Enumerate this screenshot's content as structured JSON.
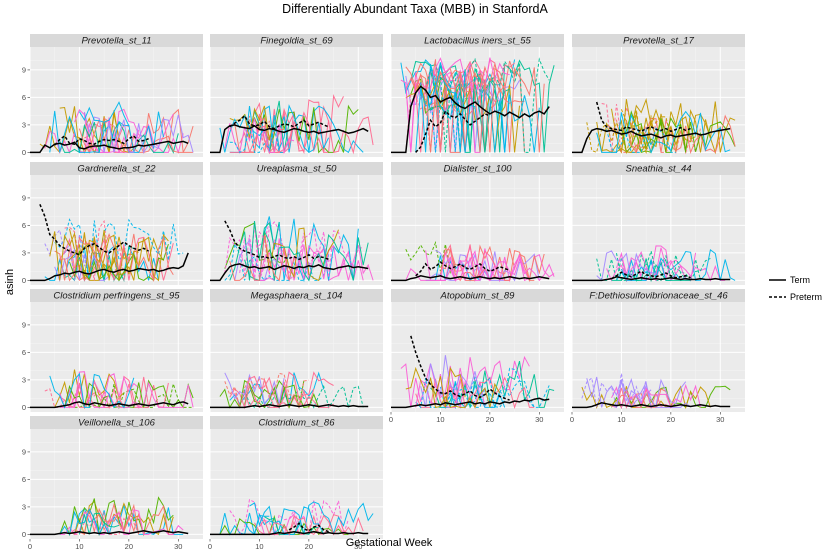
{
  "chart_data": {
    "type": "line",
    "title": "Differentially Abundant Taxa (MBB) in StanfordA",
    "xlabel": "Gestational Week",
    "ylabel": "asinh",
    "xlim": [
      0,
      35
    ],
    "ylim": [
      -0.5,
      11.5
    ],
    "x_ticks": [
      0,
      10,
      20,
      30
    ],
    "y_ticks": [
      0,
      3,
      6,
      9
    ],
    "legend": {
      "position": "right",
      "entries": [
        {
          "label": "Term",
          "linetype": "solid"
        },
        {
          "label": "Preterm",
          "linetype": "dashed"
        }
      ]
    },
    "subject_colors": [
      "#F8766D",
      "#C49A00",
      "#53B400",
      "#00C094",
      "#00B6EB",
      "#A58AFF",
      "#FB61D7",
      "#FF6C91"
    ],
    "panels": [
      {
        "title": "Prevotella_st_11",
        "level": 2.0,
        "spread": 5.0,
        "term_mean": [
          0,
          0,
          0,
          0.8,
          0.5,
          0.9,
          1.0,
          0.8,
          0.9,
          1.1,
          0.5,
          0.4,
          0.6,
          0.7,
          0.7,
          0.8,
          0.6,
          0.5,
          0.4,
          0.5,
          0.5,
          0.6,
          0.8,
          0.7,
          0.8,
          0.9,
          1.0,
          1.1,
          1.2,
          1.0,
          1.1,
          1.2,
          1.0
        ],
        "preterm_mean": [
          null,
          null,
          null,
          null,
          null,
          0.8,
          1.4,
          1.8,
          1.0,
          0.9,
          1.5,
          1.3,
          1.0,
          0.9,
          1.2,
          1.4,
          1.3,
          1.4,
          1.2,
          1.0,
          1.5,
          1.8,
          1.2,
          1.3,
          1.5,
          null,
          null,
          null,
          null,
          null,
          null,
          null,
          null
        ]
      },
      {
        "title": "Finegoldia_st_69",
        "level": 2.5,
        "spread": 5.5,
        "term_mean": [
          0,
          0,
          0,
          2.5,
          2.9,
          3.0,
          2.8,
          2.7,
          2.6,
          2.9,
          2.5,
          2.4,
          2.6,
          2.5,
          2.3,
          2.2,
          2.4,
          2.6,
          2.5,
          2.3,
          2.2,
          2.3,
          2.1,
          2.2,
          2.3,
          2.4,
          2.5,
          2.3,
          2.1,
          2.2,
          2.4,
          2.6,
          2.3
        ],
        "preterm_mean": [
          null,
          null,
          null,
          null,
          2.8,
          3.2,
          3.5,
          4.0,
          3.1,
          2.9,
          3.0,
          3.4,
          2.8,
          2.6,
          2.9,
          3.1,
          3.0,
          2.8,
          3.2,
          3.5,
          2.9,
          3.1,
          3.3,
          3.0,
          2.8,
          null,
          null,
          null,
          null,
          null,
          null,
          null,
          null
        ]
      },
      {
        "title": "Lactobacillus iners_st_55",
        "level": 7.0,
        "spread": 4.0,
        "term_mean": [
          0,
          0,
          0,
          0,
          5.0,
          6.5,
          7.2,
          6.8,
          6.0,
          6.2,
          5.5,
          5.8,
          6.0,
          5.4,
          5.0,
          4.8,
          5.2,
          5.5,
          5.0,
          4.6,
          4.2,
          4.5,
          4.3,
          4.0,
          4.4,
          4.1,
          3.8,
          4.2,
          3.9,
          4.3,
          4.5,
          4.2,
          5.0
        ],
        "preterm_mean": [
          null,
          null,
          null,
          null,
          null,
          0,
          0.6,
          2.0,
          3.5,
          2.8,
          3.2,
          4.5,
          4.0,
          3.8,
          4.2,
          3.6,
          3.0,
          3.4,
          3.8,
          4.2,
          4.0,
          null,
          null,
          null,
          null,
          null,
          null,
          null,
          null,
          null,
          null,
          null,
          null
        ]
      },
      {
        "title": "Prevotella_st_17",
        "level": 2.5,
        "spread": 5.0,
        "term_mean": [
          0,
          0,
          0,
          1.5,
          2.4,
          2.6,
          2.5,
          2.3,
          2.4,
          2.2,
          2.0,
          2.1,
          2.3,
          2.0,
          1.8,
          1.9,
          2.0,
          1.8,
          1.6,
          1.8,
          1.9,
          1.7,
          1.8,
          1.9,
          2.0,
          2.1,
          1.9,
          2.0,
          2.2,
          2.3,
          2.4,
          2.5,
          2.6
        ],
        "preterm_mean": [
          null,
          null,
          null,
          null,
          null,
          5.5,
          3.5,
          2.8,
          2.6,
          2.5,
          2.4,
          2.8,
          2.6,
          2.5,
          2.3,
          2.6,
          2.8,
          2.5,
          2.4,
          2.6,
          2.3,
          2.5,
          2.7,
          2.4,
          2.6,
          null,
          null,
          null,
          null,
          null,
          null,
          null,
          null
        ]
      },
      {
        "title": "Gardnerella_st_22",
        "level": 3.0,
        "spread": 5.0,
        "term_mean": [
          0,
          0,
          0,
          0,
          0.2,
          0.5,
          0.6,
          0.8,
          0.7,
          0.9,
          1.0,
          0.8,
          0.7,
          0.9,
          1.1,
          1.2,
          1.0,
          0.9,
          1.1,
          1.2,
          1.0,
          1.1,
          1.3,
          1.2,
          1.1,
          1.2,
          1.0,
          1.1,
          1.3,
          1.4,
          1.3,
          1.6,
          3.0
        ],
        "preterm_mean": [
          null,
          null,
          8.3,
          7.0,
          5.0,
          4.5,
          3.8,
          3.5,
          3.2,
          3.0,
          2.8,
          3.5,
          3.8,
          4.0,
          3.6,
          3.2,
          3.0,
          3.4,
          3.8,
          4.2,
          3.8,
          3.5,
          3.3,
          3.5,
          3.2,
          null,
          null,
          null,
          null,
          null,
          null,
          null,
          null
        ]
      },
      {
        "title": "Ureaplasma_st_50",
        "level": 2.5,
        "spread": 6.0,
        "term_mean": [
          0,
          0,
          0,
          0.8,
          1.5,
          1.7,
          1.8,
          1.6,
          1.4,
          1.5,
          1.3,
          1.4,
          1.5,
          1.2,
          1.4,
          1.6,
          1.5,
          1.3,
          1.5,
          1.4,
          1.6,
          1.5,
          1.7,
          1.4,
          1.3,
          1.2,
          1.4,
          1.5,
          1.6,
          1.4,
          1.5,
          1.4,
          1.3
        ],
        "preterm_mean": [
          null,
          null,
          null,
          6.5,
          5.5,
          4.2,
          3.5,
          3.2,
          3.0,
          2.8,
          2.5,
          2.6,
          2.4,
          2.6,
          2.8,
          2.5,
          2.4,
          2.6,
          2.3,
          2.5,
          2.8,
          2.4,
          2.6,
          2.5,
          2.3,
          null,
          null,
          null,
          null,
          null,
          null,
          null,
          null
        ]
      },
      {
        "title": "Dialister_st_100",
        "level": 1.0,
        "spread": 4.5,
        "term_mean": [
          0,
          0,
          0,
          0,
          0.2,
          0.3,
          0.5,
          0.4,
          0.3,
          0.4,
          0.5,
          0.3,
          0.2,
          0.3,
          0.4,
          0.3,
          0.2,
          0.3,
          0.4,
          0.3,
          0.2,
          0.3,
          0.2,
          0.3,
          0.4,
          0.3,
          0.2,
          0.3,
          0.2,
          0.3,
          0.4,
          0.3,
          0.2
        ],
        "preterm_mean": [
          null,
          null,
          null,
          null,
          null,
          0.5,
          1.0,
          1.8,
          1.2,
          1.5,
          2.0,
          1.6,
          1.3,
          1.5,
          1.8,
          1.4,
          1.2,
          1.5,
          1.8,
          1.3,
          1.0,
          1.2,
          1.5,
          1.3,
          1.1,
          null,
          null,
          null,
          null,
          null,
          null,
          null,
          null
        ]
      },
      {
        "title": "Sneathia_st_44",
        "level": 0.5,
        "spread": 4.0,
        "term_mean": [
          0,
          0,
          0,
          0,
          0,
          0,
          0,
          0.1,
          0.2,
          0.4,
          0.3,
          0.2,
          0.1,
          0.2,
          0.3,
          0.2,
          0.1,
          0.2,
          0.1,
          0.2,
          0.3,
          0.2,
          0.1,
          0.2,
          0.1,
          0.1,
          0.2,
          0.1,
          0.1,
          0.2,
          0.1,
          0.1,
          0.1
        ],
        "preterm_mean": [
          null,
          null,
          null,
          null,
          null,
          null,
          null,
          null,
          0.2,
          0.5,
          0.9,
          0.6,
          0.4,
          0.7,
          1.0,
          0.6,
          0.5,
          0.4,
          0.6,
          0.8,
          0.5,
          0.3,
          0.4,
          0.5,
          0.3,
          null,
          null,
          null,
          null,
          null,
          null,
          null,
          null
        ]
      },
      {
        "title": "Clostridium perfringens_st_95",
        "level": 0.8,
        "spread": 4.5,
        "term_mean": [
          0,
          0,
          0,
          0,
          0,
          0,
          0.1,
          0.2,
          0.3,
          0.5,
          0.6,
          0.4,
          0.3,
          0.5,
          0.4,
          0.3,
          0.2,
          0.3,
          0.4,
          0.3,
          0.2,
          0.3,
          0.4,
          0.3,
          0.2,
          0.3,
          0.4,
          0.5,
          0.4,
          0.3,
          0.5,
          0.6,
          0.4
        ],
        "preterm_mean": [
          null,
          null,
          null,
          null,
          null,
          null,
          null,
          null,
          null,
          null,
          null,
          null,
          null,
          null,
          null,
          null,
          null,
          null,
          null,
          null,
          null,
          null,
          null,
          null,
          null,
          null,
          null,
          null,
          null,
          null,
          null,
          null,
          null
        ]
      },
      {
        "title": "Megasphaera_st_104",
        "level": 0.8,
        "spread": 3.5,
        "term_mean": [
          0,
          0,
          0,
          0,
          0,
          0,
          0,
          0,
          0.1,
          0.2,
          0.1,
          0.2,
          0.3,
          0.2,
          0.1,
          0.2,
          0.3,
          0.2,
          0.1,
          0.2,
          0.3,
          0.2,
          0.1,
          0.2,
          0.3,
          0.2,
          0.1,
          0.2,
          0.1,
          0.2,
          0.1,
          0.1,
          0.1
        ],
        "preterm_mean": [
          null,
          null,
          null,
          null,
          null,
          null,
          null,
          null,
          null,
          null,
          null,
          null,
          null,
          null,
          null,
          null,
          null,
          null,
          null,
          null,
          null,
          null,
          null,
          null,
          null,
          null,
          null,
          null,
          null,
          null,
          null,
          null,
          null
        ]
      },
      {
        "title": "Atopobium_st_89",
        "level": 2.0,
        "spread": 5.0,
        "term_mean": [
          0,
          0,
          0,
          0,
          0.1,
          0.2,
          0.3,
          0.2,
          0.3,
          0.4,
          0.3,
          0.5,
          0.4,
          0.3,
          0.4,
          0.5,
          0.6,
          0.4,
          0.5,
          0.4,
          0.6,
          0.5,
          0.4,
          0.6,
          0.5,
          0.7,
          0.6,
          0.8,
          0.7,
          0.9,
          1.0,
          0.8,
          0.9
        ],
        "preterm_mean": [
          null,
          null,
          null,
          null,
          7.8,
          6.0,
          4.5,
          3.2,
          2.5,
          2.0,
          1.6,
          1.5,
          1.8,
          1.4,
          1.2,
          1.5,
          1.8,
          1.3,
          1.1,
          1.4,
          2.0,
          1.6,
          1.2,
          1.0,
          0.8,
          null,
          null,
          null,
          null,
          null,
          null,
          null,
          null
        ]
      },
      {
        "title": "F:Dethiosulfovibrionaceae_st_46",
        "level": 0.8,
        "spread": 3.5,
        "term_mean": [
          0,
          0,
          0,
          0,
          0.1,
          0.3,
          0.5,
          0.4,
          0.3,
          0.2,
          0.3,
          0.2,
          0.1,
          0.2,
          0.3,
          0.2,
          0.1,
          0.2,
          0.3,
          0.2,
          0.1,
          0.2,
          0.3,
          0.2,
          0.1,
          0.2,
          0.3,
          0.2,
          0.1,
          0.2,
          0.1,
          0.1,
          0.1
        ],
        "preterm_mean": [
          null,
          null,
          null,
          null,
          null,
          null,
          null,
          null,
          null,
          null,
          null,
          null,
          null,
          null,
          null,
          null,
          null,
          null,
          null,
          null,
          null,
          null,
          null,
          null,
          null,
          null,
          null,
          null,
          null,
          null,
          null,
          null,
          null
        ]
      },
      {
        "title": "Veillonella_st_106",
        "level": 0.8,
        "spread": 4.5,
        "term_mean": [
          0,
          0,
          0,
          0,
          0,
          0,
          0.1,
          0.2,
          0.1,
          0.2,
          0.3,
          0.2,
          0.1,
          0.2,
          0.1,
          0.2,
          0.1,
          0.2,
          0.3,
          0.2,
          0.1,
          0.2,
          0.3,
          0.4,
          0.3,
          0.2,
          0.3,
          0.4,
          0.3,
          0.2,
          0.3,
          0.2,
          0.1
        ],
        "preterm_mean": [
          null,
          null,
          null,
          null,
          null,
          null,
          null,
          null,
          null,
          null,
          null,
          null,
          null,
          null,
          null,
          null,
          null,
          null,
          null,
          null,
          null,
          null,
          null,
          null,
          null,
          null,
          null,
          null,
          null,
          null,
          null,
          null,
          null
        ]
      },
      {
        "title": "Clostridium_st_86",
        "level": 0.8,
        "spread": 3.5,
        "term_mean": [
          0,
          0,
          0,
          0,
          0,
          0,
          0,
          0,
          0,
          0,
          0,
          0,
          0,
          0.1,
          0.2,
          0.1,
          0.2,
          0.3,
          0.2,
          0.1,
          0.2,
          0.3,
          0.2,
          0.1,
          0.2,
          0.1,
          0.1,
          0.2,
          0.1,
          0.1,
          0.2,
          0.1,
          0.1
        ],
        "preterm_mean": [
          null,
          null,
          null,
          null,
          null,
          null,
          null,
          null,
          null,
          null,
          null,
          null,
          null,
          null,
          null,
          null,
          0.5,
          0.8,
          1.2,
          0.6,
          0.4,
          0.8,
          1.0,
          0.5,
          0.3,
          null,
          null,
          null,
          null,
          null,
          null,
          null,
          null
        ]
      }
    ]
  }
}
